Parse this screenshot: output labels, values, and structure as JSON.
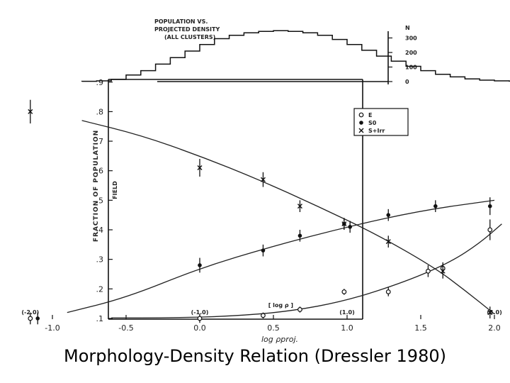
{
  "caption": "Morphology-Density Relation (Dressler 1980)",
  "chart_data": {
    "type": "scatter",
    "xlabel": "log ρproj.",
    "ylabel": "FRACTION OF POPULATION",
    "field_label": "FIELD",
    "xlim": [
      -1.25,
      2.35
    ],
    "ylim": [
      0.05,
      1.0
    ],
    "x_ticks": [
      -1.0,
      -0.5,
      0.0,
      0.5,
      1.0,
      1.5,
      2.0
    ],
    "x_tick_labels": [
      "-1.0",
      "-0.5",
      "0.0",
      "0.5",
      "1.0",
      "1.5",
      "2.0"
    ],
    "y_ticks": [
      0.1,
      0.2,
      0.3,
      0.4,
      0.5,
      0.6,
      0.7,
      0.8,
      0.9
    ],
    "y_tick_labels": [
      ".1",
      ".2",
      ".3",
      ".4",
      ".5",
      ".6",
      ".7",
      ".8",
      ".9"
    ],
    "density_scale": {
      "label": "[ log ρ ]",
      "ticks": [
        {
          "x": -1.15,
          "label": "(-2.0)"
        },
        {
          "x": 0.0,
          "label": "(-1.0)"
        },
        {
          "x": 1.0,
          "label": "(1.0)"
        },
        {
          "x": 2.0,
          "label": "(3.0)"
        }
      ]
    },
    "legend": {
      "placement": "top-right",
      "entries": [
        {
          "marker": "open-circle",
          "label": "E"
        },
        {
          "marker": "filled-circle",
          "label": "S0"
        },
        {
          "marker": "cross",
          "label": "S+Irr"
        }
      ]
    },
    "series": [
      {
        "name": "E",
        "marker": "open-circle",
        "points": [
          {
            "x": -1.15,
            "y": 0.1,
            "err": 0.02
          },
          {
            "x": 0.0,
            "y": 0.1,
            "err": 0.015
          },
          {
            "x": 0.43,
            "y": 0.11,
            "err": 0.01
          },
          {
            "x": 0.68,
            "y": 0.13,
            "err": 0.01
          },
          {
            "x": 0.98,
            "y": 0.19,
            "err": 0.01
          },
          {
            "x": 1.28,
            "y": 0.19,
            "err": 0.015
          },
          {
            "x": 1.55,
            "y": 0.26,
            "err": 0.02
          },
          {
            "x": 1.65,
            "y": 0.27,
            "err": 0.02
          },
          {
            "x": 1.97,
            "y": 0.4,
            "err": 0.035
          }
        ],
        "curve": [
          [
            -0.6,
            0.102
          ],
          [
            -0.2,
            0.102
          ],
          [
            0.2,
            0.107
          ],
          [
            0.6,
            0.123
          ],
          [
            1.0,
            0.16
          ],
          [
            1.4,
            0.225
          ],
          [
            1.7,
            0.29
          ],
          [
            1.9,
            0.355
          ],
          [
            2.05,
            0.42
          ]
        ]
      },
      {
        "name": "S0",
        "marker": "filled-circle",
        "points": [
          {
            "x": -1.1,
            "y": 0.1,
            "err": 0.02
          },
          {
            "x": 0.0,
            "y": 0.28,
            "err": 0.025
          },
          {
            "x": 0.43,
            "y": 0.33,
            "err": 0.02
          },
          {
            "x": 0.68,
            "y": 0.38,
            "err": 0.02
          },
          {
            "x": 0.98,
            "y": 0.42,
            "err": 0.02
          },
          {
            "x": 1.02,
            "y": 0.41,
            "err": 0.02
          },
          {
            "x": 1.28,
            "y": 0.45,
            "err": 0.02
          },
          {
            "x": 1.6,
            "y": 0.48,
            "err": 0.02
          },
          {
            "x": 1.97,
            "y": 0.48,
            "err": 0.03
          }
        ],
        "curve": [
          [
            -0.9,
            0.12
          ],
          [
            -0.5,
            0.17
          ],
          [
            0.0,
            0.27
          ],
          [
            0.5,
            0.345
          ],
          [
            1.0,
            0.41
          ],
          [
            1.5,
            0.465
          ],
          [
            2.0,
            0.5
          ]
        ]
      },
      {
        "name": "S+Irr",
        "marker": "cross",
        "points": [
          {
            "x": -1.15,
            "y": 0.8,
            "err": 0.04
          },
          {
            "x": 0.0,
            "y": 0.61,
            "err": 0.03
          },
          {
            "x": 0.43,
            "y": 0.57,
            "err": 0.025
          },
          {
            "x": 0.68,
            "y": 0.48,
            "err": 0.02
          },
          {
            "x": 0.98,
            "y": 0.42,
            "err": 0.02
          },
          {
            "x": 1.28,
            "y": 0.36,
            "err": 0.02
          },
          {
            "x": 1.65,
            "y": 0.26,
            "err": 0.025
          },
          {
            "x": 1.97,
            "y": 0.12,
            "err": 0.02
          }
        ],
        "curve": [
          [
            -0.8,
            0.77
          ],
          [
            -0.4,
            0.72
          ],
          [
            0.0,
            0.65
          ],
          [
            0.4,
            0.57
          ],
          [
            0.8,
            0.48
          ],
          [
            1.2,
            0.385
          ],
          [
            1.6,
            0.27
          ],
          [
            1.8,
            0.195
          ],
          [
            2.0,
            0.115
          ]
        ]
      }
    ],
    "inset": {
      "type": "histogram",
      "title_lines": [
        "POPULATION VS.",
        "PROJECTED DENSITY",
        "(ALL CLUSTERS)"
      ],
      "ylabel": "N",
      "y_ticks": [
        0,
        100,
        200,
        300
      ],
      "y_tick_labels": [
        "0",
        "100",
        "200",
        "300"
      ],
      "ylim": [
        0,
        350
      ],
      "bin_start": -0.8,
      "bin_width": 0.1,
      "counts": [
        2,
        5,
        15,
        45,
        75,
        120,
        165,
        210,
        255,
        295,
        318,
        335,
        345,
        350,
        345,
        335,
        318,
        290,
        255,
        215,
        175,
        140,
        105,
        75,
        50,
        32,
        18,
        10,
        5,
        3
      ]
    }
  }
}
